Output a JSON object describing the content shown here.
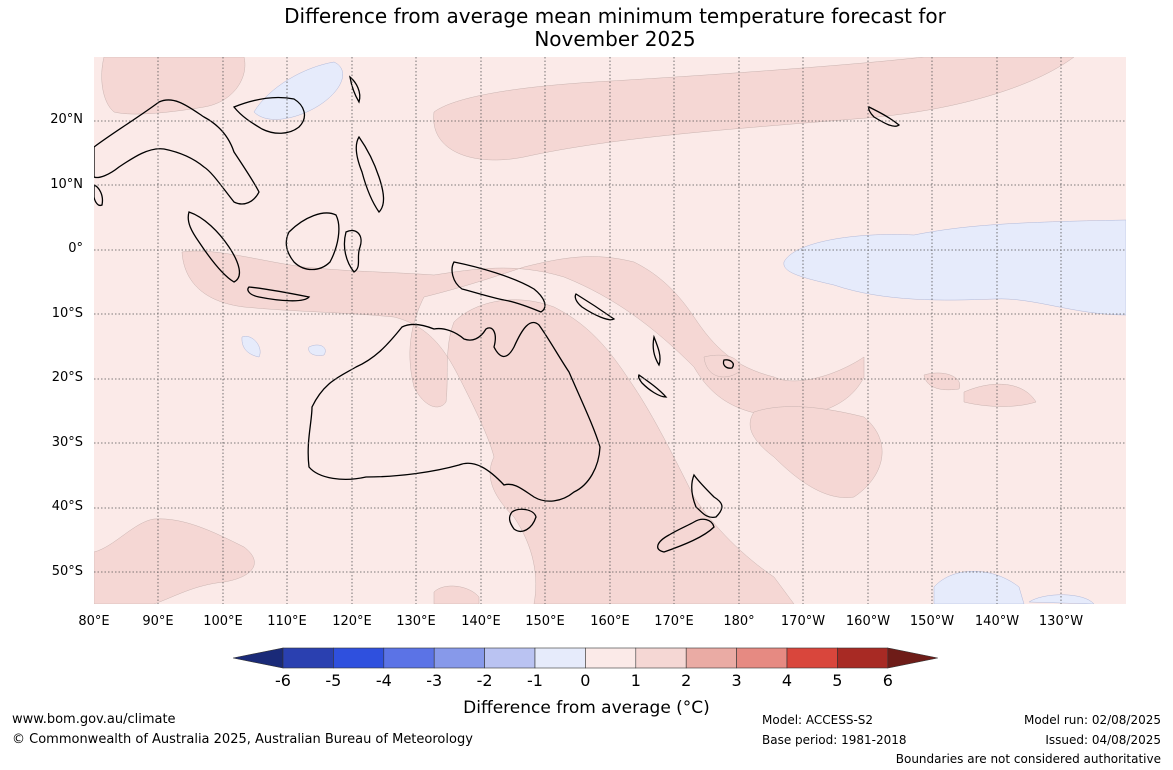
{
  "title": {
    "line1": "Difference from average mean minimum temperature forecast for",
    "line2": "November 2025"
  },
  "map": {
    "lat_labels": [
      "20°N",
      "10°N",
      "0°",
      "10°S",
      "20°S",
      "30°S",
      "40°S",
      "50°S"
    ],
    "lon_labels": [
      "80°E",
      "90°E",
      "100°E",
      "110°E",
      "120°E",
      "130°E",
      "140°E",
      "150°E",
      "160°E",
      "170°E",
      "180°",
      "170°W",
      "160°W",
      "150°W",
      "140°W",
      "130°W"
    ],
    "background_color": "#fbeae8",
    "anomaly_colors": {
      "0_to_1": "#fbeae8",
      "1_to_2": "#f5d7d4",
      "-1_to_0": "#e6ebfb"
    }
  },
  "colorbar": {
    "ticks": [
      "-6",
      "-5",
      "-4",
      "-3",
      "-2",
      "-1",
      "0",
      "1",
      "2",
      "3",
      "4",
      "5",
      "6"
    ],
    "colors": [
      "#1a2a78",
      "#2a40b0",
      "#2f50de",
      "#5b73e6",
      "#8799ea",
      "#bac3f2",
      "#e6ebfb",
      "#fbeae8",
      "#f5d7d4",
      "#eaaba4",
      "#e68a82",
      "#d9463c",
      "#a82a24",
      "#6e1c18"
    ],
    "label": "Difference from average (°C)"
  },
  "footer": {
    "website": "www.bom.gov.au/climate",
    "copyright": "© Commonwealth of Australia 2025, Australian Bureau of Meteorology",
    "model": "Model: ACCESS-S2",
    "base_period": "Base period: 1981-2018",
    "model_run": "Model run: 02/08/2025",
    "issued": "Issued: 04/08/2025",
    "disclaimer": "Boundaries are not considered authoritative"
  }
}
